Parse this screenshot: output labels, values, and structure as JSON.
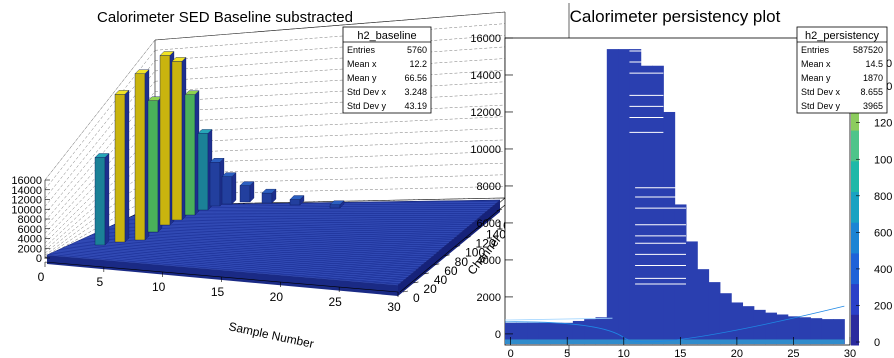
{
  "left_panel": {
    "title": "Calorimeter SED Baseline substracted",
    "stats": {
      "name": "h2_baseline",
      "rows": [
        [
          "Entries",
          "5760"
        ],
        [
          "Mean x",
          "12.2"
        ],
        [
          "Mean y",
          "66.56"
        ],
        [
          "Std Dev x",
          "3.248"
        ],
        [
          "Std Dev y",
          "43.19"
        ]
      ]
    },
    "xlabel": "Sample Number",
    "ylabel": "Channel",
    "x_ticks": [
      "0",
      "5",
      "10",
      "15",
      "20",
      "25",
      "30"
    ],
    "y_ticks": [
      "0",
      "20",
      "40",
      "60",
      "80",
      "100",
      "120",
      "140",
      "160",
      "180"
    ],
    "z_ticks": [
      "0",
      "2000",
      "4000",
      "6000",
      "8000",
      "10000",
      "12000",
      "14000",
      "16000"
    ]
  },
  "right_panel": {
    "title": "Calorimeter persistency plot",
    "stats": {
      "name": "h2_persistency",
      "rows": [
        [
          "Entries",
          "587520"
        ],
        [
          "Mean x",
          "14.5"
        ],
        [
          "Mean y",
          "1870"
        ],
        [
          "Std Dev x",
          "8.655"
        ],
        [
          "Std Dev y",
          "3965"
        ]
      ]
    },
    "xlabel": "Sample Nr",
    "y_ticks": [
      "0",
      "2000",
      "4000",
      "6000",
      "8000",
      "10000",
      "12000",
      "14000",
      "16000"
    ],
    "x_ticks": [
      "0",
      "5",
      "10",
      "15",
      "20",
      "25",
      "30"
    ],
    "palette_ticks": [
      "0",
      "200",
      "400",
      "600",
      "800",
      "100",
      "120",
      "140"
    ],
    "palette_partial": "0"
  },
  "chart_data": [
    {
      "type": "lego3d",
      "title": "Calorimeter SED Baseline substracted",
      "xlabel": "Sample Number",
      "ylabel": "Channel",
      "xlim": [
        0,
        30
      ],
      "ylim": [
        0,
        190
      ],
      "zlim": [
        0,
        16000
      ],
      "x": [
        9,
        10,
        11,
        12,
        13,
        14,
        15,
        16,
        17,
        18,
        20,
        22,
        25,
        28
      ],
      "peak_z": [
        8000,
        11000,
        15500,
        15000,
        14000,
        9000,
        5000,
        3000,
        2000,
        1200,
        800,
        500,
        300,
        200
      ],
      "colors": {
        "low": "#2040a8",
        "mid": "#20a0c0",
        "high": "#f0e020"
      }
    },
    {
      "type": "heatmap",
      "title": "Calorimeter persistency plot",
      "xlabel": "Sample Nr",
      "ylabel": "",
      "xlim": [
        -0.5,
        30
      ],
      "ylim": [
        -600,
        16000
      ],
      "column_top": [
        [
          0,
          600
        ],
        [
          1,
          600
        ],
        [
          2,
          600
        ],
        [
          3,
          600
        ],
        [
          4,
          600
        ],
        [
          5,
          600
        ],
        [
          6,
          700
        ],
        [
          7,
          800
        ],
        [
          8,
          900
        ],
        [
          9,
          15400
        ],
        [
          10,
          15400
        ],
        [
          11,
          15400
        ],
        [
          12,
          14500
        ],
        [
          13,
          14500
        ],
        [
          14,
          12000
        ],
        [
          15,
          7000
        ],
        [
          16,
          5000
        ],
        [
          17,
          3500
        ],
        [
          18,
          2800
        ],
        [
          19,
          2200
        ],
        [
          20,
          1700
        ],
        [
          21,
          1500
        ],
        [
          22,
          1300
        ],
        [
          23,
          1150
        ],
        [
          24,
          1050
        ],
        [
          25,
          950
        ],
        [
          26,
          900
        ],
        [
          27,
          850
        ],
        [
          28,
          800
        ],
        [
          29,
          800
        ]
      ],
      "colors": {
        "fill": "#2a3fb0",
        "edge": "#1e88e5",
        "highlight": "#ffffff"
      }
    }
  ]
}
